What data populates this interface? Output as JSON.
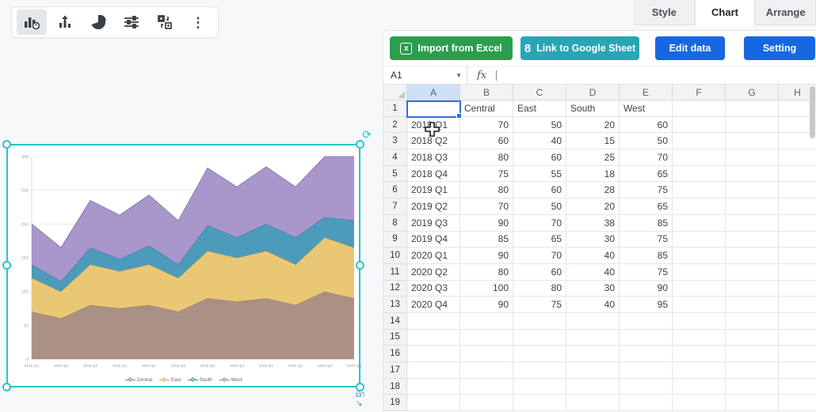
{
  "toolbar": {
    "icons": [
      "chart-type-icon",
      "add-chart-icon",
      "pie-chart-icon",
      "adjust-sliders-icon",
      "swap-shape-icon",
      "more-vertical-icon"
    ],
    "selected_index": 0
  },
  "tabs": {
    "items": [
      "Style",
      "Chart",
      "Arrange"
    ],
    "active": "Chart"
  },
  "panel": {
    "buttons": [
      {
        "label": "Import from Excel",
        "icon": "excel-icon",
        "glyph": "x",
        "color": "#2b9e4d"
      },
      {
        "label": "Link to Google Sheet",
        "icon": "google-sheet-icon",
        "glyph": "8",
        "color": "#29a5b5"
      },
      {
        "label": "Edit data",
        "color": "#1667e0"
      },
      {
        "label": "Setting",
        "color": "#1667e0"
      }
    ],
    "name_box": "A1",
    "fx_label": "fx"
  },
  "spreadsheet": {
    "columns": [
      "A",
      "B",
      "C",
      "D",
      "E",
      "F",
      "G",
      "H"
    ],
    "row_count": 19,
    "selected_cell": "A1",
    "selected_column": "A",
    "records": [
      [
        "",
        "Central",
        "East",
        "South",
        "West"
      ],
      [
        "2018 Q1",
        70,
        50,
        20,
        60
      ],
      [
        "2018 Q2",
        60,
        40,
        15,
        50
      ],
      [
        "2018 Q3",
        80,
        60,
        25,
        70
      ],
      [
        "2018 Q4",
        75,
        55,
        18,
        65
      ],
      [
        "2019 Q1",
        80,
        60,
        28,
        75
      ],
      [
        "2019 Q2",
        70,
        50,
        20,
        65
      ],
      [
        "2019 Q3",
        90,
        70,
        38,
        85
      ],
      [
        "2019 Q4",
        85,
        65,
        30,
        75
      ],
      [
        "2020 Q1",
        90,
        70,
        40,
        85
      ],
      [
        "2020 Q2",
        80,
        60,
        40,
        75
      ],
      [
        "2020 Q3",
        100,
        80,
        30,
        90
      ],
      [
        "2020 Q4",
        90,
        75,
        40,
        95
      ]
    ]
  },
  "chart_data": {
    "type": "area",
    "stacked": true,
    "x": [
      "2018 Q1",
      "2018 Q2",
      "2018 Q3",
      "2018 Q4",
      "2019 Q1",
      "2019 Q2",
      "2019 Q3",
      "2019 Q4",
      "2020 Q1",
      "2020 Q2",
      "2020 Q3",
      "2020 Q4"
    ],
    "series": [
      {
        "name": "Central",
        "color": "#a5897c",
        "line": "#93766a",
        "values": [
          70,
          60,
          80,
          75,
          80,
          70,
          90,
          85,
          90,
          80,
          100,
          90
        ]
      },
      {
        "name": "East",
        "color": "#e8c36b",
        "line": "#d2a84e",
        "values": [
          50,
          40,
          60,
          55,
          60,
          50,
          70,
          65,
          70,
          60,
          80,
          75
        ]
      },
      {
        "name": "South",
        "color": "#3f93b6",
        "line": "#2e7ea1",
        "values": [
          20,
          15,
          25,
          18,
          28,
          20,
          38,
          30,
          40,
          40,
          30,
          40
        ]
      },
      {
        "name": "West",
        "color": "#a28ec6",
        "line": "#8d78ba",
        "values": [
          60,
          50,
          70,
          65,
          75,
          65,
          85,
          75,
          85,
          75,
          90,
          95
        ]
      }
    ],
    "ylim": [
      0,
      300
    ],
    "yticks": [
      0,
      50,
      100,
      150,
      200,
      250,
      300
    ],
    "grid": true,
    "legend_position": "bottom",
    "title": "",
    "xlabel": "",
    "ylabel": ""
  },
  "selection": {
    "border_color": "#2bc4cc",
    "handle_icons": [
      "rotate-icon",
      "copy-icon",
      "redo-icon",
      "grow-arrow-icon"
    ]
  }
}
